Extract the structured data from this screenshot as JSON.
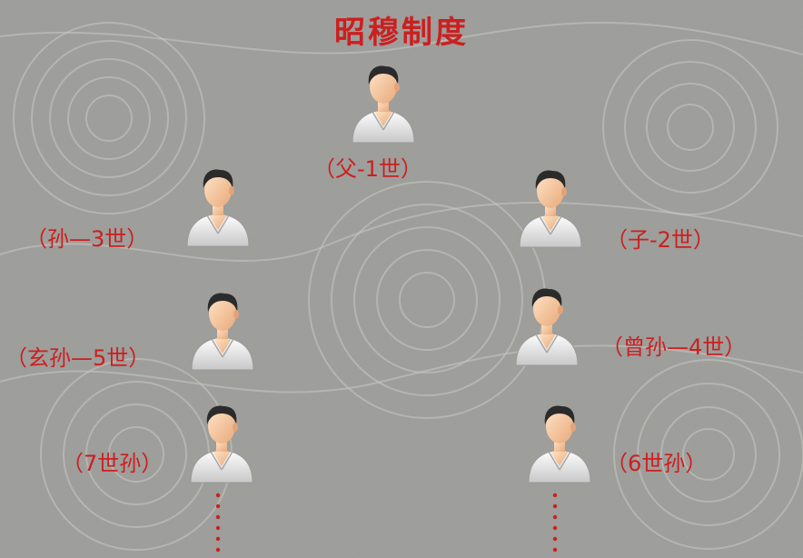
{
  "title": "昭穆制度",
  "generations": [
    {
      "id": "father",
      "label": "（父-1世）",
      "side": "center"
    },
    {
      "id": "son",
      "label": "（子-2世）",
      "side": "right"
    },
    {
      "id": "grandson",
      "label": "（孙—3世）",
      "side": "left"
    },
    {
      "id": "great-grandson",
      "label": "（曾孙—4世）",
      "side": "right"
    },
    {
      "id": "great-great-grandson",
      "label": "（玄孙—5世）",
      "side": "left"
    },
    {
      "id": "sixth",
      "label": "（6世孙）",
      "side": "right"
    },
    {
      "id": "seventh",
      "label": "（7世孙）",
      "side": "left"
    }
  ],
  "colors": {
    "accent": "#cc1f1f",
    "background": "#9b9b98"
  },
  "icons": {
    "person": "person-icon",
    "continuation": "ellipsis-dots"
  }
}
